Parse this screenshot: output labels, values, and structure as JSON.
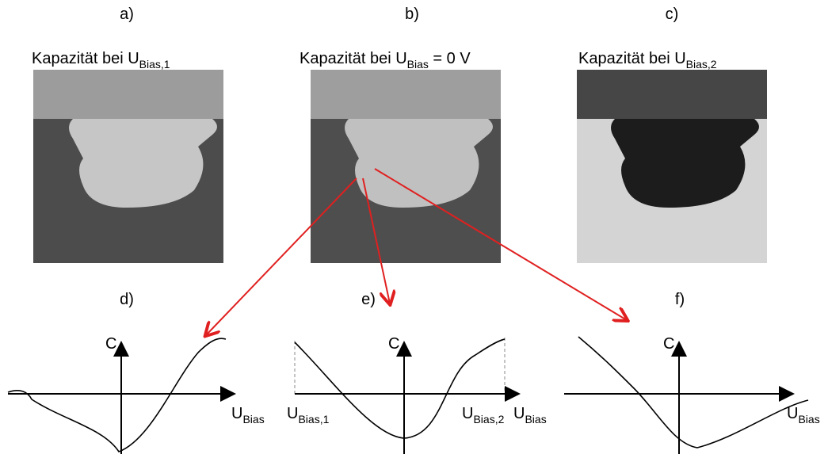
{
  "panels_top": [
    {
      "label": "a)",
      "title": "Kapazität bei U",
      "sub": "Bias,1"
    },
    {
      "label": "b)",
      "title": "Kapazität bei U",
      "sub": "Bias",
      "tail": " = 0 V"
    },
    {
      "label": "c)",
      "title": "Kapazität bei U",
      "sub": "Bias,2"
    }
  ],
  "panels_bottom": [
    {
      "label": "d)",
      "y_axis": "C",
      "x_axis": "U",
      "x_sub": "Bias"
    },
    {
      "label": "e)",
      "y_axis": "C",
      "x_axis": "U",
      "x_sub": "Bias",
      "left_mark": "U",
      "left_sub": "Bias,1",
      "right_mark": "U",
      "right_sub": "Bias,2"
    },
    {
      "label": "f)",
      "y_axis": "C",
      "x_axis": "U",
      "x_sub": "Bias"
    }
  ]
}
